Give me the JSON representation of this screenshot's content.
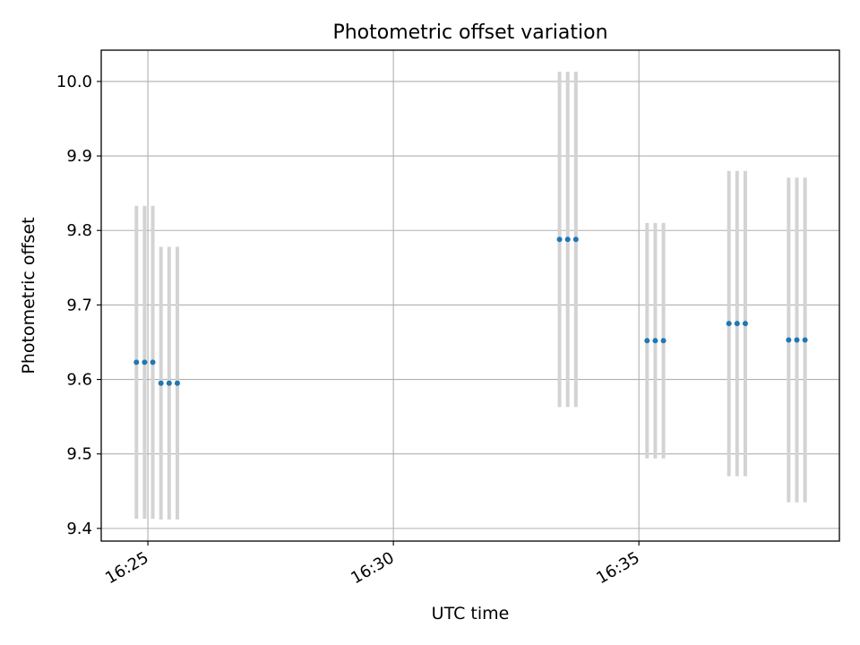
{
  "chart_data": {
    "type": "scatter",
    "title": "Photometric offset variation",
    "xlabel": "UTC time",
    "ylabel": "Photometric offset",
    "x_type": "time",
    "xlim": [
      "16:24:03",
      "16:39:05"
    ],
    "ylim": [
      9.383,
      10.042
    ],
    "grid": true,
    "x_ticks": [
      {
        "time": "16:25:00",
        "label": "16:25"
      },
      {
        "time": "16:30:00",
        "label": "16:30"
      },
      {
        "time": "16:35:00",
        "label": "16:35"
      }
    ],
    "y_ticks": [
      {
        "value": 9.4,
        "label": "9.4"
      },
      {
        "value": 9.5,
        "label": "9.5"
      },
      {
        "value": 9.6,
        "label": "9.6"
      },
      {
        "value": 9.7,
        "label": "9.7"
      },
      {
        "value": 9.8,
        "label": "9.8"
      },
      {
        "value": 9.9,
        "label": "9.9"
      },
      {
        "value": 10.0,
        "label": "10.0"
      }
    ],
    "colors": {
      "marker": "#1f77b4",
      "errorbar": "#d3d3d3",
      "grid": "#b0b0b0"
    },
    "series": [
      {
        "points": [
          {
            "t": "16:24:46",
            "y": 9.623,
            "err": 0.21
          },
          {
            "t": "16:24:56",
            "y": 9.623,
            "err": 0.21
          },
          {
            "t": "16:25:06",
            "y": 9.623,
            "err": 0.21
          },
          {
            "t": "16:25:16",
            "y": 9.595,
            "err": 0.183
          },
          {
            "t": "16:25:26",
            "y": 9.595,
            "err": 0.183
          },
          {
            "t": "16:25:36",
            "y": 9.595,
            "err": 0.183
          },
          {
            "t": "16:33:23",
            "y": 9.788,
            "err": 0.225
          },
          {
            "t": "16:33:33",
            "y": 9.788,
            "err": 0.225
          },
          {
            "t": "16:33:43",
            "y": 9.788,
            "err": 0.225
          },
          {
            "t": "16:35:10",
            "y": 9.652,
            "err": 0.158
          },
          {
            "t": "16:35:20",
            "y": 9.652,
            "err": 0.158
          },
          {
            "t": "16:35:30",
            "y": 9.652,
            "err": 0.158
          },
          {
            "t": "16:36:50",
            "y": 9.675,
            "err": 0.205
          },
          {
            "t": "16:37:00",
            "y": 9.675,
            "err": 0.205
          },
          {
            "t": "16:37:10",
            "y": 9.675,
            "err": 0.205
          },
          {
            "t": "16:38:03",
            "y": 9.653,
            "err": 0.218
          },
          {
            "t": "16:38:13",
            "y": 9.653,
            "err": 0.218
          },
          {
            "t": "16:38:23",
            "y": 9.653,
            "err": 0.218
          }
        ]
      }
    ]
  }
}
